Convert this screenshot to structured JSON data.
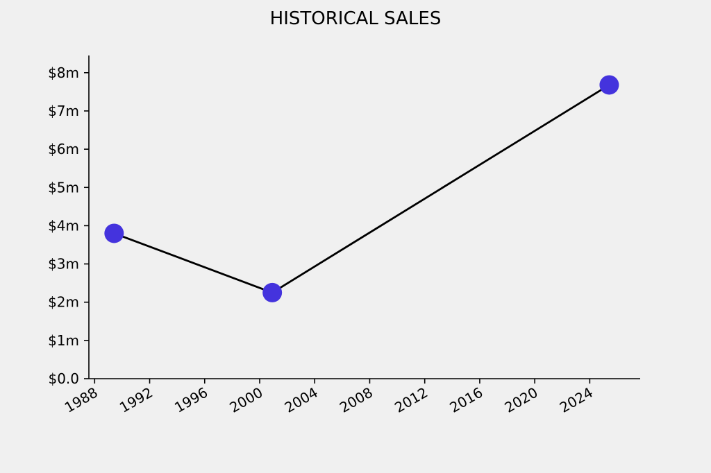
{
  "chart_data": {
    "type": "line",
    "title": "HISTORICAL SALES",
    "xlabel": "",
    "ylabel": "",
    "x_axis": "date",
    "xlim": [
      "1987-08-01",
      "2027-09-01"
    ],
    "ylim": [
      0,
      8.45
    ],
    "x_ticks": [
      {
        "value": "1988-01-01",
        "label": "1988"
      },
      {
        "value": "1992-01-01",
        "label": "1992"
      },
      {
        "value": "1996-01-01",
        "label": "1996"
      },
      {
        "value": "2000-01-01",
        "label": "2000"
      },
      {
        "value": "2004-01-01",
        "label": "2004"
      },
      {
        "value": "2008-01-01",
        "label": "2008"
      },
      {
        "value": "2012-01-01",
        "label": "2012"
      },
      {
        "value": "2016-01-01",
        "label": "2016"
      },
      {
        "value": "2020-01-01",
        "label": "2020"
      },
      {
        "value": "2024-01-01",
        "label": "2024"
      }
    ],
    "y_ticks": [
      {
        "value": 0,
        "label": "$0.0"
      },
      {
        "value": 1,
        "label": "$1m"
      },
      {
        "value": 2,
        "label": "$2m"
      },
      {
        "value": 3,
        "label": "$3m"
      },
      {
        "value": 4,
        "label": "$4m"
      },
      {
        "value": 5,
        "label": "$5m"
      },
      {
        "value": 6,
        "label": "$6m"
      },
      {
        "value": 7,
        "label": "$7m"
      },
      {
        "value": 8,
        "label": "$8m"
      }
    ],
    "grid": false,
    "legend": "none",
    "series": [
      {
        "x": [
          "1989-06-01",
          "2000-12-01",
          "2025-06-01"
        ],
        "y": [
          3.8,
          2.25,
          7.68
        ],
        "line_color": "#000000",
        "marker_color": "#4433dd"
      }
    ]
  }
}
